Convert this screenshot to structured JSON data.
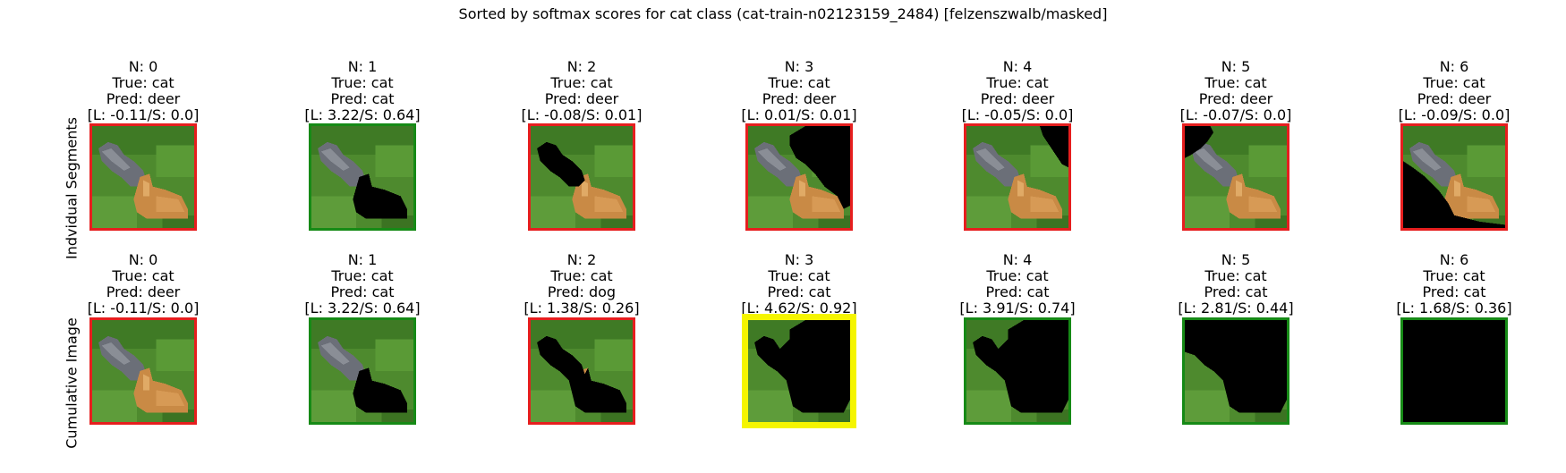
{
  "title": "Sorted by softmax scores for cat class (cat-train-n02123159_2484) [felzenszwalb/masked]",
  "rows": [
    {
      "label": "Indvidual Segments",
      "panels": [
        {
          "n": "N: 0",
          "true": "True: cat",
          "pred": "Pred: deer",
          "ls": "[L: -0.11/S: 0.0]",
          "border": "#e61e1e",
          "mask": "none"
        },
        {
          "n": "N: 1",
          "true": "True: cat",
          "pred": "Pred: cat",
          "ls": "[L: 3.22/S: 0.64]",
          "border": "#168a16",
          "mask": "catmask"
        },
        {
          "n": "N: 2",
          "true": "True: cat",
          "pred": "Pred: deer",
          "ls": "[L: -0.08/S: 0.01]",
          "border": "#e61e1e",
          "mask": "graycat"
        },
        {
          "n": "N: 3",
          "true": "True: cat",
          "pred": "Pred: deer",
          "ls": "[L: 0.01/S: 0.01]",
          "border": "#e61e1e",
          "mask": "topright"
        },
        {
          "n": "N: 4",
          "true": "True: cat",
          "pred": "Pred: deer",
          "ls": "[L: -0.05/S: 0.0]",
          "border": "#e61e1e",
          "mask": "corner"
        },
        {
          "n": "N: 5",
          "true": "True: cat",
          "pred": "Pred: deer",
          "ls": "[L: -0.07/S: 0.0]",
          "border": "#e61e1e",
          "mask": "topleft"
        },
        {
          "n": "N: 6",
          "true": "True: cat",
          "pred": "Pred: deer",
          "ls": "[L: -0.09/S: 0.0]",
          "border": "#e61e1e",
          "mask": "bottom"
        }
      ]
    },
    {
      "label": "Cumulative Image",
      "panels": [
        {
          "n": "N: 0",
          "true": "True: cat",
          "pred": "Pred: deer",
          "ls": "[L: -0.11/S: 0.0]",
          "border": "#e61e1e",
          "mask": "none"
        },
        {
          "n": "N: 1",
          "true": "True: cat",
          "pred": "Pred: cat",
          "ls": "[L: 3.22/S: 0.64]",
          "border": "#168a16",
          "mask": "catmask"
        },
        {
          "n": "N: 2",
          "true": "True: cat",
          "pred": "Pred: dog",
          "ls": "[L: 1.38/S: 0.26]",
          "border": "#e61e1e",
          "mask": "cum2"
        },
        {
          "n": "N: 3",
          "true": "True: cat",
          "pred": "Pred: cat",
          "ls": "[L: 4.62/S: 0.92]",
          "border": "#f5f500",
          "mask": "cum3"
        },
        {
          "n": "N: 4",
          "true": "True: cat",
          "pred": "Pred: cat",
          "ls": "[L: 3.91/S: 0.74]",
          "border": "#168a16",
          "mask": "cum4"
        },
        {
          "n": "N: 5",
          "true": "True: cat",
          "pred": "Pred: cat",
          "ls": "[L: 2.81/S: 0.44]",
          "border": "#168a16",
          "mask": "cum5"
        },
        {
          "n": "N: 6",
          "true": "True: cat",
          "pred": "Pred: cat",
          "ls": "[L: 1.68/S: 0.36]",
          "border": "#168a16",
          "mask": "full"
        }
      ]
    }
  ]
}
